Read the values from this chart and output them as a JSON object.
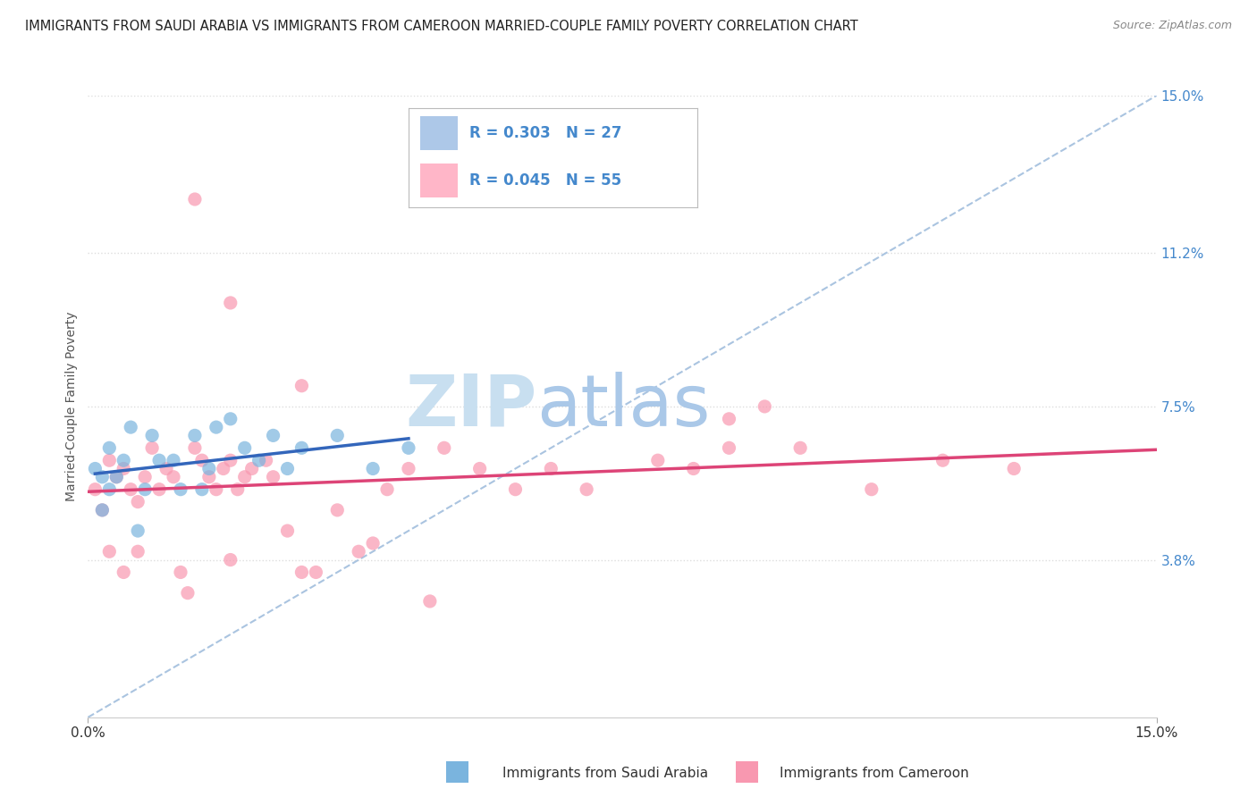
{
  "title": "IMMIGRANTS FROM SAUDI ARABIA VS IMMIGRANTS FROM CAMEROON MARRIED-COUPLE FAMILY POVERTY CORRELATION CHART",
  "source": "Source: ZipAtlas.com",
  "ylabel": "Married-Couple Family Poverty",
  "xlim": [
    0,
    0.15
  ],
  "ylim": [
    0,
    0.15
  ],
  "ytick_values": [
    0.038,
    0.075,
    0.112,
    0.15
  ],
  "ytick_labels": [
    "3.8%",
    "7.5%",
    "11.2%",
    "15.0%"
  ],
  "legend_box_colors": [
    "#adc8e8",
    "#ffb6c8"
  ],
  "series1_color": "#7ab4de",
  "series2_color": "#f898b0",
  "trendline1_color": "#3366bb",
  "trendline2_color": "#dd4477",
  "refline_color": "#aac4e0",
  "watermark_zip": "ZIP",
  "watermark_atlas": "atlas",
  "watermark_color_zip": "#c8dff0",
  "watermark_color_atlas": "#aac8e8",
  "background_color": "#ffffff",
  "grid_color": "#dddddd",
  "title_color": "#222222",
  "axis_label_color": "#555555",
  "tick_color": "#4488cc",
  "saudi_x": [
    0.001,
    0.002,
    0.002,
    0.003,
    0.003,
    0.004,
    0.005,
    0.006,
    0.007,
    0.008,
    0.009,
    0.01,
    0.012,
    0.013,
    0.015,
    0.016,
    0.017,
    0.018,
    0.02,
    0.022,
    0.024,
    0.026,
    0.028,
    0.03,
    0.035,
    0.04,
    0.045
  ],
  "saudi_y": [
    0.06,
    0.058,
    0.05,
    0.055,
    0.065,
    0.058,
    0.062,
    0.07,
    0.045,
    0.055,
    0.068,
    0.062,
    0.062,
    0.055,
    0.068,
    0.055,
    0.06,
    0.07,
    0.072,
    0.065,
    0.062,
    0.068,
    0.06,
    0.065,
    0.068,
    0.06,
    0.065
  ],
  "cameron_x": [
    0.001,
    0.002,
    0.003,
    0.003,
    0.004,
    0.005,
    0.005,
    0.006,
    0.007,
    0.007,
    0.008,
    0.009,
    0.01,
    0.011,
    0.012,
    0.013,
    0.014,
    0.015,
    0.016,
    0.017,
    0.018,
    0.019,
    0.02,
    0.02,
    0.021,
    0.022,
    0.023,
    0.025,
    0.026,
    0.028,
    0.03,
    0.032,
    0.035,
    0.038,
    0.04,
    0.042,
    0.045,
    0.048,
    0.05,
    0.055,
    0.06,
    0.065,
    0.07,
    0.08,
    0.085,
    0.09,
    0.095,
    0.1,
    0.11,
    0.12,
    0.13,
    0.015,
    0.02,
    0.03,
    0.09
  ],
  "cameron_y": [
    0.055,
    0.05,
    0.062,
    0.04,
    0.058,
    0.06,
    0.035,
    0.055,
    0.052,
    0.04,
    0.058,
    0.065,
    0.055,
    0.06,
    0.058,
    0.035,
    0.03,
    0.065,
    0.062,
    0.058,
    0.055,
    0.06,
    0.062,
    0.038,
    0.055,
    0.058,
    0.06,
    0.062,
    0.058,
    0.045,
    0.035,
    0.035,
    0.05,
    0.04,
    0.042,
    0.055,
    0.06,
    0.028,
    0.065,
    0.06,
    0.055,
    0.06,
    0.055,
    0.062,
    0.06,
    0.065,
    0.075,
    0.065,
    0.055,
    0.062,
    0.06,
    0.125,
    0.1,
    0.08,
    0.072
  ]
}
